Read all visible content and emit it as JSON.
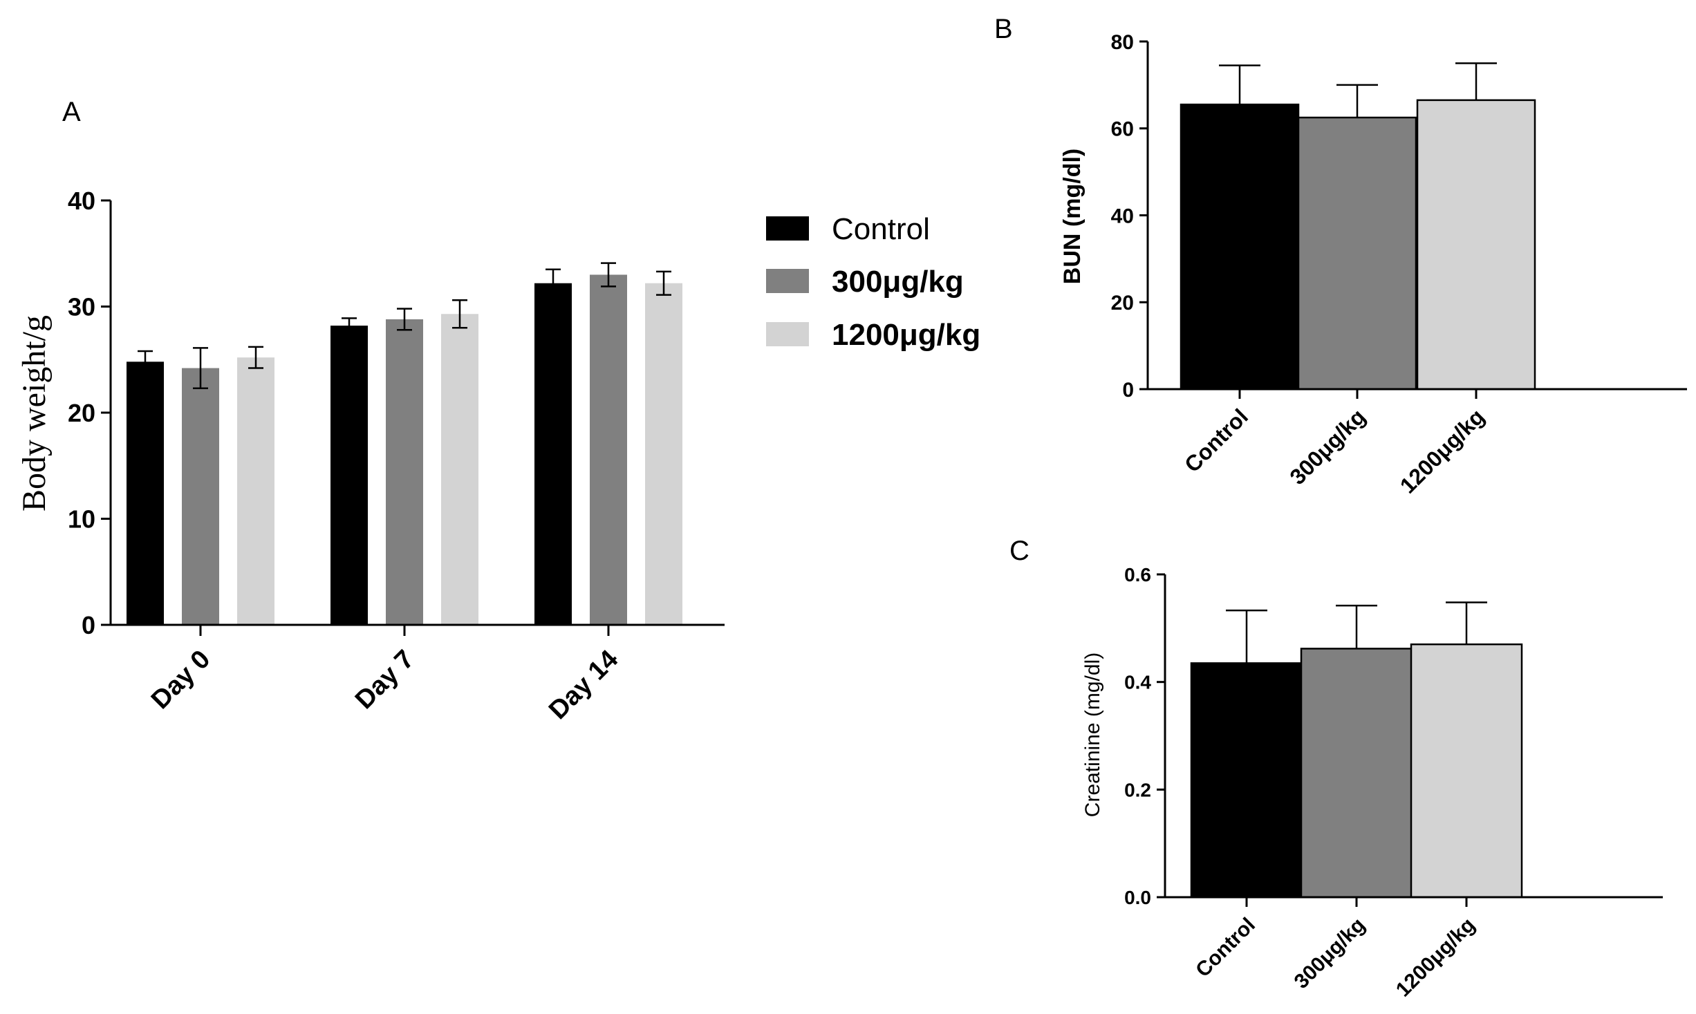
{
  "colors": {
    "control": "#000000",
    "dose300": "#808080",
    "dose1200": "#d3d3d3"
  },
  "chart_data": [
    {
      "panel": "A",
      "type": "bar",
      "ylabel": "Body weight/g",
      "xlabel": "",
      "ylim": [
        0,
        40
      ],
      "yticks": [
        "0",
        "10",
        "20",
        "30",
        "40"
      ],
      "categories": [
        "Day 0",
        "Day 7",
        "Day 14"
      ],
      "legend_position": "right",
      "series": [
        {
          "name": "Control",
          "values": [
            24.8,
            28.2,
            32.2
          ],
          "errors": [
            1.0,
            0.7,
            1.3
          ]
        },
        {
          "name": "300μg/kg",
          "values": [
            24.2,
            28.8,
            33.0
          ],
          "errors": [
            1.9,
            1.0,
            1.1
          ]
        },
        {
          "name": "1200μg/kg",
          "values": [
            25.2,
            29.3,
            32.2
          ],
          "errors": [
            1.0,
            1.3,
            1.1
          ]
        }
      ]
    },
    {
      "panel": "B",
      "type": "bar",
      "ylabel": "BUN (mg/dl)",
      "xlabel": "",
      "ylim": [
        0,
        80
      ],
      "yticks": [
        "0",
        "20",
        "40",
        "60",
        "80"
      ],
      "categories": [
        "Control",
        "300μg/kg",
        "1200μg/kg"
      ],
      "values": [
        65.5,
        62.5,
        66.5
      ],
      "errors": [
        9.0,
        7.5,
        8.5
      ]
    },
    {
      "panel": "C",
      "type": "bar",
      "ylabel": "Creatinine (mg/dl)",
      "xlabel": "",
      "ylim": [
        0,
        0.6
      ],
      "yticks": [
        "0.0",
        "0.2",
        "0.4",
        "0.6"
      ],
      "categories": [
        "Control",
        "300μg/kg",
        "1200μg/kg"
      ],
      "values": [
        0.435,
        0.462,
        0.47
      ],
      "errors": [
        0.098,
        0.08,
        0.078
      ]
    }
  ]
}
